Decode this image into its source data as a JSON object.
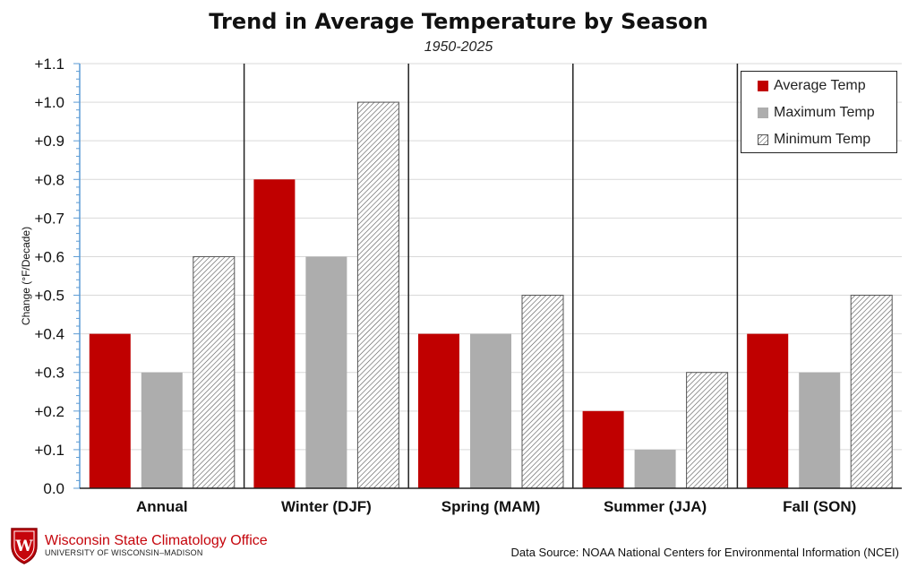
{
  "header": {
    "title": "Trend in Average Temperature by Season",
    "subtitle": "1950-2025"
  },
  "chart_data": {
    "type": "bar",
    "title": "Trend in Average Temperature by Season",
    "subtitle": "1950-2025",
    "xlabel": "",
    "ylabel": "Change (°F/Decade)",
    "ylim": [
      0,
      1.1
    ],
    "yticks": [
      "0.0",
      "+0.1",
      "+0.2",
      "+0.3",
      "+0.4",
      "+0.5",
      "+0.6",
      "+0.7",
      "+0.8",
      "+0.9",
      "+1.0",
      "+1.1"
    ],
    "categories": [
      "Annual",
      "Winter (DJF)",
      "Spring (MAM)",
      "Summer (JJA)",
      "Fall (SON)"
    ],
    "series": [
      {
        "name": "Average Temp",
        "color": "#c00000",
        "pattern": "solid",
        "values": [
          0.4,
          0.8,
          0.4,
          0.2,
          0.4
        ]
      },
      {
        "name": "Maximum Temp",
        "color": "#adadad",
        "pattern": "solid",
        "values": [
          0.3,
          0.6,
          0.4,
          0.1,
          0.3
        ]
      },
      {
        "name": "Minimum Temp",
        "color": "#555555",
        "pattern": "hatch",
        "values": [
          0.6,
          1.0,
          0.5,
          0.3,
          0.5
        ]
      }
    ],
    "grid": true,
    "legend_position": "top-right"
  },
  "footer": {
    "org_name": "Wisconsin State Climatology Office",
    "org_sub": "UNIVERSITY OF WISCONSIN–MADISON",
    "logo_letter": "W",
    "source": "Data Source: NOAA National Centers for Environmental Information (NCEI)"
  },
  "colors": {
    "brand_red": "#c5050c",
    "avg": "#c00000",
    "max": "#adadad",
    "grid": "#d9d9d9",
    "axis": "#5b9bd5"
  }
}
